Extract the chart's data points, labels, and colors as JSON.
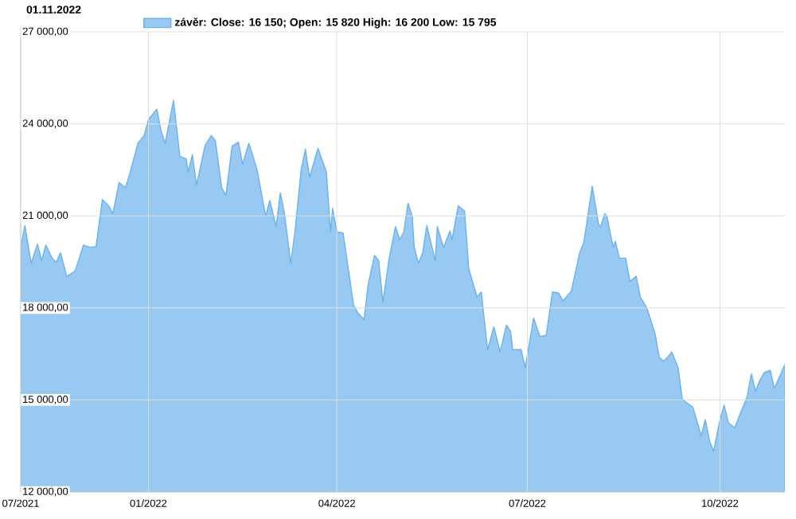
{
  "chart_data": {
    "type": "area",
    "title": "01.11.2022",
    "xlim": [
      "2021-11-01",
      "2022-11-01"
    ],
    "xticks": [
      {
        "value": "2021-11-01",
        "label": "07/2021"
      },
      {
        "value": "2022-01-01",
        "label": "01/2022"
      },
      {
        "value": "2022-04-01",
        "label": "04/2022"
      },
      {
        "value": "2022-07-01",
        "label": "07/2022"
      },
      {
        "value": "2022-10-01",
        "label": "10/2022"
      }
    ],
    "ylim": [
      12000,
      27000
    ],
    "yticks": [
      {
        "value": 12000,
        "label": "12 000,00"
      },
      {
        "value": 15000,
        "label": "15 000,00"
      },
      {
        "value": 18000,
        "label": "18 000,00"
      },
      {
        "value": 21000,
        "label": "21 000,00"
      },
      {
        "value": 24000,
        "label": "24 000,00"
      },
      {
        "value": 27000,
        "label": "27 000,00"
      }
    ],
    "grid": true,
    "legend": "top",
    "x": [
      "2021-11-01",
      "2021-11-03",
      "2021-11-06",
      "2021-11-09",
      "2021-11-11",
      "2021-11-13",
      "2021-11-16",
      "2021-11-18",
      "2021-11-20",
      "2021-11-23",
      "2021-11-27",
      "2021-11-29",
      "2021-12-01",
      "2021-12-04",
      "2021-12-07",
      "2021-12-10",
      "2021-12-13",
      "2021-12-15",
      "2021-12-18",
      "2021-12-21",
      "2021-12-23",
      "2021-12-27",
      "2021-12-30",
      "2022-01-01",
      "2022-01-05",
      "2022-01-07",
      "2022-01-09",
      "2022-01-13",
      "2022-01-16",
      "2022-01-19",
      "2022-01-20",
      "2022-01-22",
      "2022-01-24",
      "2022-01-28",
      "2022-01-31",
      "2022-02-02",
      "2022-02-05",
      "2022-02-07",
      "2022-02-10",
      "2022-02-13",
      "2022-02-15",
      "2022-02-18",
      "2022-02-22",
      "2022-02-26",
      "2022-02-28",
      "2022-03-03",
      "2022-03-05",
      "2022-03-07",
      "2022-03-10",
      "2022-03-12",
      "2022-03-15",
      "2022-03-17",
      "2022-03-19",
      "2022-03-23",
      "2022-03-27",
      "2022-03-29",
      "2022-03-30",
      "2022-04-01",
      "2022-04-04",
      "2022-04-09",
      "2022-04-11",
      "2022-04-14",
      "2022-04-16",
      "2022-04-19",
      "2022-04-21",
      "2022-04-23",
      "2022-04-26",
      "2022-04-29",
      "2022-05-01",
      "2022-05-03",
      "2022-05-05",
      "2022-05-07",
      "2022-05-08",
      "2022-05-10",
      "2022-05-12",
      "2022-05-14",
      "2022-05-18",
      "2022-05-19",
      "2022-05-22",
      "2022-05-25",
      "2022-05-26",
      "2022-05-29",
      "2022-06-01",
      "2022-06-03",
      "2022-06-07",
      "2022-06-09",
      "2022-06-12",
      "2022-06-15",
      "2022-06-18",
      "2022-06-21",
      "2022-06-23",
      "2022-06-24",
      "2022-06-28",
      "2022-06-30",
      "2022-07-04",
      "2022-07-07",
      "2022-07-10",
      "2022-07-13",
      "2022-07-16",
      "2022-07-18",
      "2022-07-22",
      "2022-07-26",
      "2022-07-28",
      "2022-08-01",
      "2022-08-04",
      "2022-08-05",
      "2022-08-07",
      "2022-08-08",
      "2022-08-11",
      "2022-08-12",
      "2022-08-14",
      "2022-08-17",
      "2022-08-19",
      "2022-08-22",
      "2022-08-24",
      "2022-08-27",
      "2022-08-31",
      "2022-09-02",
      "2022-09-04",
      "2022-09-06",
      "2022-09-08",
      "2022-09-11",
      "2022-09-13",
      "2022-09-16",
      "2022-09-18",
      "2022-09-22",
      "2022-09-24",
      "2022-09-26",
      "2022-09-28",
      "2022-10-01",
      "2022-10-03",
      "2022-10-05",
      "2022-10-08",
      "2022-10-10",
      "2022-10-14",
      "2022-10-16",
      "2022-10-18",
      "2022-10-20",
      "2022-10-22",
      "2022-10-25",
      "2022-10-27",
      "2022-11-01"
    ],
    "series": [
      {
        "name": "závěr: Close: 16 150; Open: 15 820 High: 16 200 Low: 15 795",
        "color": "#6ab2ee",
        "values": [
          19970,
          20680,
          19450,
          20080,
          19540,
          20050,
          19620,
          19490,
          19800,
          19030,
          19200,
          19620,
          20050,
          19970,
          20000,
          21530,
          21330,
          21070,
          22090,
          21920,
          22350,
          23370,
          23620,
          24140,
          24480,
          23790,
          23370,
          24770,
          22940,
          22860,
          22430,
          22990,
          22010,
          23280,
          23620,
          23450,
          21920,
          21670,
          23280,
          23400,
          22690,
          23370,
          22480,
          20990,
          21500,
          20650,
          21750,
          21070,
          19450,
          20480,
          22520,
          23170,
          22260,
          23200,
          22430,
          20480,
          21240,
          20480,
          20440,
          18090,
          17840,
          17620,
          18770,
          19710,
          19540,
          18180,
          19620,
          20650,
          20220,
          20480,
          21410,
          20990,
          19970,
          19450,
          19800,
          20680,
          19540,
          20650,
          19970,
          20510,
          20220,
          21330,
          21160,
          19280,
          18350,
          18520,
          16640,
          17380,
          16560,
          17440,
          17240,
          16640,
          16640,
          16050,
          17670,
          17070,
          17110,
          18520,
          18480,
          18230,
          18550,
          19800,
          20140,
          21970,
          20730,
          20650,
          21070,
          20990,
          19970,
          20170,
          19620,
          19620,
          18860,
          19030,
          18350,
          18010,
          17160,
          16390,
          16260,
          16390,
          16560,
          16050,
          15030,
          14860,
          14770,
          13840,
          14350,
          13670,
          13330,
          14350,
          14830,
          14260,
          14090,
          14430,
          15110,
          15850,
          15280,
          15630,
          15880,
          15970,
          15370,
          16150
        ]
      }
    ]
  }
}
